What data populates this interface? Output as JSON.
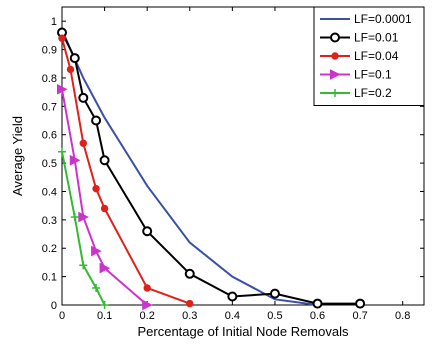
{
  "chart_data": {
    "type": "line",
    "xlabel": "Percentage of Initial Node Removals",
    "ylabel": "Average Yield",
    "xlim": [
      0,
      0.85
    ],
    "ylim": [
      0,
      1.05
    ],
    "xticks": [
      0,
      0.1,
      0.2,
      0.3,
      0.4,
      0.5,
      0.6,
      0.7,
      0.8
    ],
    "xtick_labels": [
      "0",
      "0.1",
      "0.2",
      "0.3",
      "0.4",
      "0.5",
      "0.6",
      "0.7",
      "0.8"
    ],
    "yticks": [
      0,
      0.1,
      0.2,
      0.3,
      0.4,
      0.5,
      0.6,
      0.7,
      0.8,
      0.9,
      1
    ],
    "ytick_labels": [
      "0",
      "0.1",
      "0.2",
      "0.3",
      "0.4",
      "0.5",
      "0.6",
      "0.7",
      "0.8",
      "0.9",
      "1"
    ],
    "grid": false,
    "legend_position": "top-right",
    "series": [
      {
        "name": "LF=0.0001",
        "color": "#3b4fa8",
        "marker": "none",
        "x": [
          0,
          0.02,
          0.05,
          0.1,
          0.2,
          0.3,
          0.4,
          0.5,
          0.6
        ],
        "y": [
          0.97,
          0.9,
          0.8,
          0.66,
          0.42,
          0.22,
          0.1,
          0.02,
          0
        ]
      },
      {
        "name": "LF=0.01",
        "color": "#000000",
        "marker": "circle",
        "x": [
          0,
          0.03,
          0.05,
          0.08,
          0.1,
          0.2,
          0.3,
          0.4,
          0.5,
          0.6,
          0.7
        ],
        "y": [
          0.96,
          0.87,
          0.73,
          0.65,
          0.51,
          0.26,
          0.11,
          0.03,
          0.04,
          0.005,
          0.005
        ]
      },
      {
        "name": "LF=0.04",
        "color": "#e0201b",
        "marker": "dot",
        "x": [
          0,
          0.02,
          0.05,
          0.08,
          0.1,
          0.2,
          0.3
        ],
        "y": [
          0.94,
          0.83,
          0.57,
          0.41,
          0.34,
          0.06,
          0.005
        ]
      },
      {
        "name": "LF=0.1",
        "color": "#cc33cc",
        "marker": "triangle-right",
        "x": [
          0,
          0.03,
          0.05,
          0.08,
          0.1,
          0.2
        ],
        "y": [
          0.76,
          0.51,
          0.31,
          0.19,
          0.13,
          0
        ]
      },
      {
        "name": "LF=0.2",
        "color": "#33bb33",
        "marker": "plus",
        "x": [
          0,
          0.03,
          0.05,
          0.08,
          0.1
        ],
        "y": [
          0.54,
          0.31,
          0.14,
          0.06,
          0
        ]
      }
    ]
  }
}
